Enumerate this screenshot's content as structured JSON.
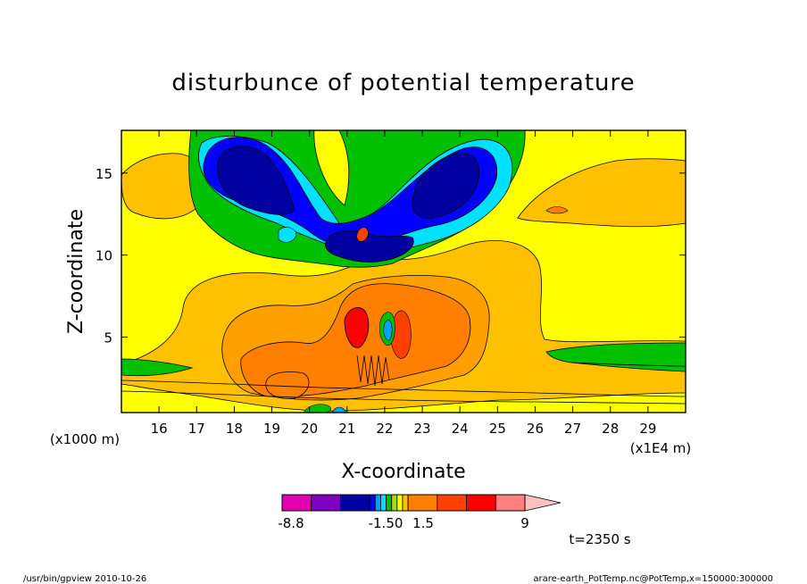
{
  "chart_data": {
    "type": "heatmap",
    "title": "disturbunce of potential temperature",
    "xlabel": "X-coordinate",
    "ylabel": "Z-coordinate",
    "x_unit": "(x1E4 m)",
    "y_unit": "(x1000 m)",
    "xlim": [
      15.0,
      30.0
    ],
    "ylim": [
      0.4,
      17.6
    ],
    "x_ticks": [
      16,
      17,
      18,
      19,
      20,
      21,
      22,
      23,
      24,
      25,
      26,
      27,
      28,
      29
    ],
    "y_ticks": [
      5,
      10,
      15
    ],
    "colorbar": {
      "tick_labels": [
        {
          "label": "-8.8",
          "value": -8.8
        },
        {
          "label": "-1.50",
          "value": -1.5
        },
        {
          "label": "1.5",
          "value": 1.5
        },
        {
          "label": "9",
          "value": 9
        }
      ],
      "colors": [
        "#e000b0",
        "#8000c0",
        "#0000a0",
        "#0000ff",
        "#00a0ff",
        "#00e0ff",
        "#00c000",
        "#a0e000",
        "#ffff00",
        "#ffc000",
        "#ff8000",
        "#ff4000",
        "#ff0000",
        "#ff8080",
        "#ffc0c0"
      ]
    },
    "regions": [
      {
        "name": "upper-left-negative-core",
        "x": 18.6,
        "z": 13.6,
        "rx": 1.4,
        "rz": 2.6,
        "level": "strong negative"
      },
      {
        "name": "upper-right-negative-core",
        "x": 23.8,
        "z": 13.4,
        "rx": 1.4,
        "rz": 2.6,
        "level": "strong negative"
      },
      {
        "name": "central-upper-negative",
        "x": 21.5,
        "z": 11.0,
        "rx": 1.3,
        "rz": 1.0,
        "level": "negative"
      },
      {
        "name": "lower-positive-warm",
        "x": 22.0,
        "z": 5.0,
        "rx": 3.5,
        "rz": 2.5,
        "level": "positive"
      },
      {
        "name": "left-low-warm-lobe",
        "x": 19.5,
        "z": 3.0,
        "rx": 1.6,
        "rz": 1.3,
        "level": "positive"
      },
      {
        "name": "core-max",
        "x": 21.2,
        "z": 5.8,
        "rx": 0.35,
        "rz": 1.1,
        "level": "strong positive"
      }
    ],
    "annotation_time": "t=2350 s"
  },
  "footer": {
    "left": "/usr/bin/gpview  2010-10-26",
    "right": "arare-earth_PotTemp.nc@PotTemp,x=150000:300000"
  }
}
